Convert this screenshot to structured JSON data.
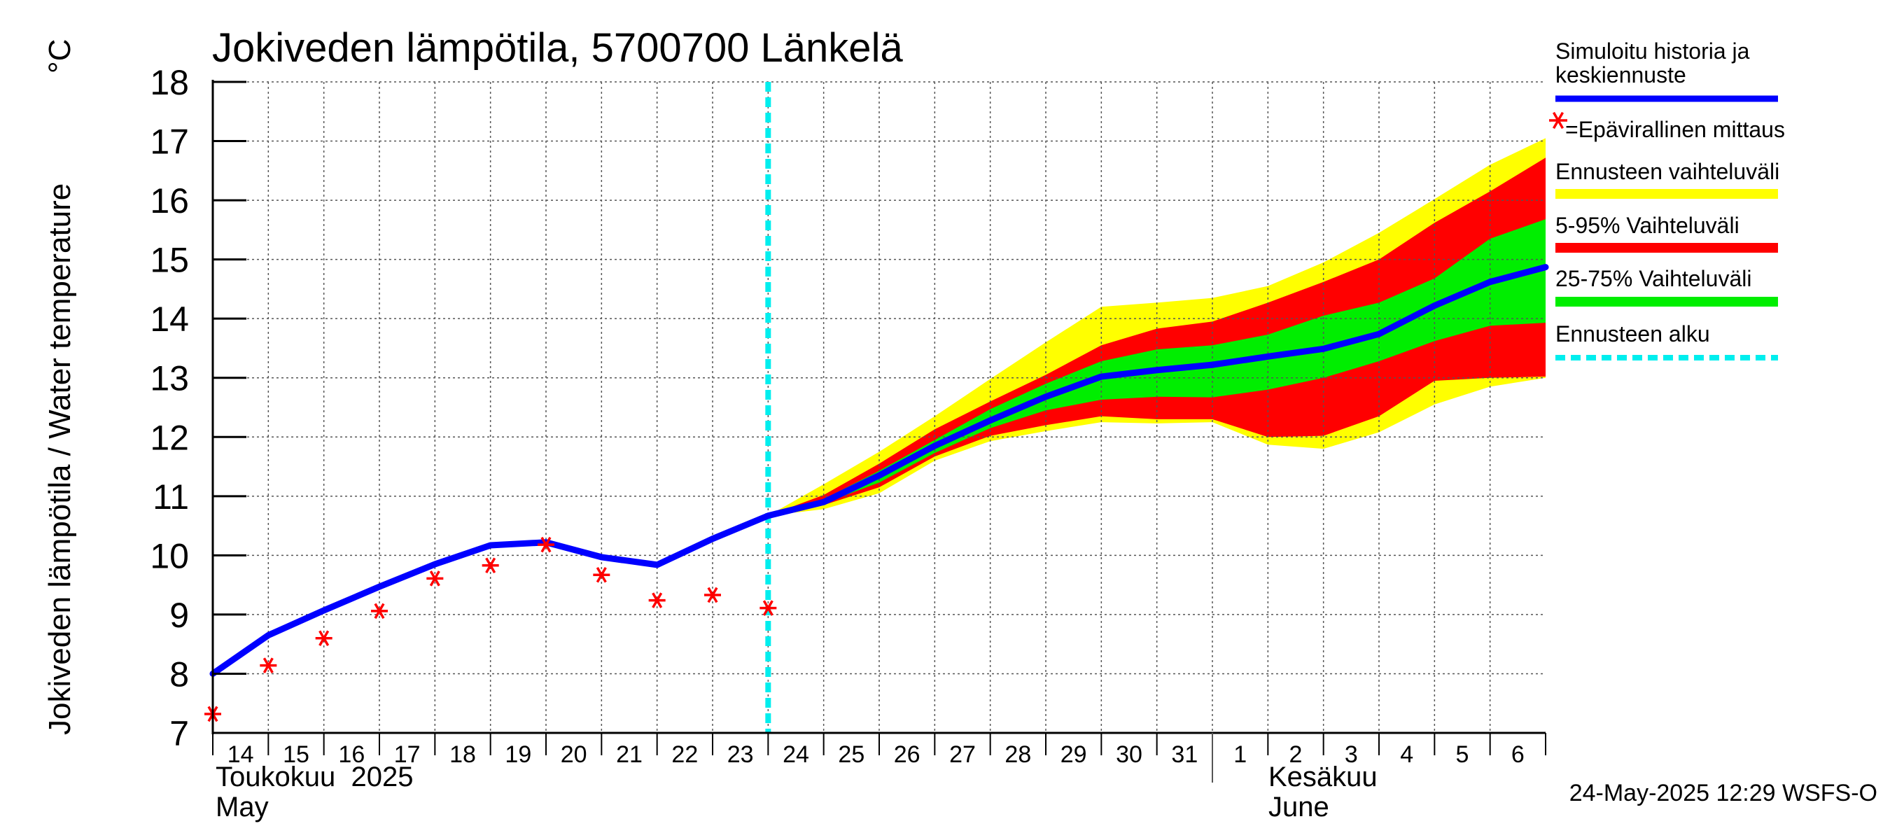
{
  "chart_data": {
    "type": "line",
    "title": "Jokiveden lämpötila, 5700700 Länkelä",
    "ylabel": "Jokiveden lämpötila / Water temperature",
    "yunit": "°C",
    "ylim": [
      7,
      18
    ],
    "yticks": [
      7,
      8,
      9,
      10,
      11,
      12,
      13,
      14,
      15,
      16,
      17,
      18
    ],
    "xlim": [
      "2025-05-14",
      "2025-06-07"
    ],
    "xtick_labels": [
      "14",
      "15",
      "16",
      "17",
      "18",
      "19",
      "20",
      "21",
      "22",
      "23",
      "24",
      "25",
      "26",
      "27",
      "28",
      "29",
      "30",
      "31",
      "1",
      "2",
      "3",
      "4",
      "5",
      "6"
    ],
    "month_labels": [
      {
        "fi": "Toukokuu  2025",
        "en": "May"
      },
      {
        "fi": "Kesäkuu",
        "en": "June"
      }
    ],
    "grid": true,
    "legend_position": "right",
    "forecast_start": "2025-05-24",
    "simulated": {
      "name": "Simuloitu historia ja keskiennuste",
      "color": "#0000ff",
      "x": [
        "2025-05-14",
        "2025-05-15",
        "2025-05-16",
        "2025-05-17",
        "2025-05-18",
        "2025-05-19",
        "2025-05-20",
        "2025-05-21",
        "2025-05-22",
        "2025-05-23",
        "2025-05-24",
        "2025-05-25",
        "2025-05-26",
        "2025-05-27",
        "2025-05-28",
        "2025-05-29",
        "2025-05-30",
        "2025-05-31",
        "2025-06-01",
        "2025-06-02",
        "2025-06-03",
        "2025-06-04",
        "2025-06-05",
        "2025-06-06",
        "2025-06-07"
      ],
      "y": [
        8.0,
        8.65,
        9.07,
        9.47,
        9.85,
        10.17,
        10.22,
        9.97,
        9.84,
        10.28,
        10.67,
        10.9,
        11.35,
        11.85,
        12.28,
        12.68,
        13.02,
        13.13,
        13.22,
        13.36,
        13.49,
        13.74,
        14.22,
        14.62,
        14.87
      ]
    },
    "observations": {
      "name": "=Epävirallinen mittaus",
      "marker": "*",
      "color": "#ff0000",
      "x": [
        "2025-05-14",
        "2025-05-15",
        "2025-05-16",
        "2025-05-17",
        "2025-05-18",
        "2025-05-19",
        "2025-05-20",
        "2025-05-21",
        "2025-05-22",
        "2025-05-23",
        "2025-05-24"
      ],
      "y": [
        7.32,
        8.14,
        8.6,
        9.06,
        9.61,
        9.83,
        10.18,
        9.67,
        9.24,
        9.33,
        9.11
      ]
    },
    "bands_x": [
      "2025-05-24",
      "2025-05-25",
      "2025-05-26",
      "2025-05-27",
      "2025-05-28",
      "2025-05-29",
      "2025-05-30",
      "2025-05-31",
      "2025-06-01",
      "2025-06-02",
      "2025-06-03",
      "2025-06-04",
      "2025-06-05",
      "2025-06-06",
      "2025-06-07"
    ],
    "bands": [
      {
        "name": "Ennusteen vaihteluväli",
        "color": "#ffff00",
        "upper": [
          10.67,
          11.2,
          11.75,
          12.35,
          12.98,
          13.6,
          14.2,
          14.27,
          14.35,
          14.55,
          14.95,
          15.45,
          16.02,
          16.6,
          17.05
        ],
        "lower": [
          10.67,
          10.78,
          11.05,
          11.6,
          11.93,
          12.1,
          12.25,
          12.23,
          12.25,
          11.87,
          11.8,
          12.08,
          12.55,
          12.85,
          13.0
        ]
      },
      {
        "name": "5-95% Vaihteluväli",
        "color": "#ff0000",
        "upper": [
          10.67,
          11.02,
          11.55,
          12.13,
          12.6,
          13.05,
          13.55,
          13.83,
          13.95,
          14.27,
          14.62,
          15.0,
          15.62,
          16.15,
          16.72
        ],
        "lower": [
          10.67,
          10.85,
          11.15,
          11.67,
          12.02,
          12.2,
          12.35,
          12.3,
          12.3,
          12.0,
          12.02,
          12.35,
          12.95,
          13.0,
          13.02
        ]
      },
      {
        "name": "25-75% Vaihteluväli",
        "color": "#00ee00",
        "upper": [
          10.67,
          10.95,
          11.43,
          11.95,
          12.47,
          12.9,
          13.28,
          13.48,
          13.55,
          13.73,
          14.05,
          14.27,
          14.68,
          15.35,
          15.68
        ],
        "lower": [
          10.67,
          10.88,
          11.23,
          11.73,
          12.15,
          12.45,
          12.63,
          12.68,
          12.67,
          12.8,
          13.0,
          13.28,
          13.62,
          13.88,
          13.93
        ]
      }
    ],
    "forecast_start_line": {
      "name": "Ennusteen alku",
      "color": "#00eeee"
    },
    "legend_header": [
      "Simuloitu historia ja",
      "keskiennuste"
    ]
  },
  "footer": {
    "timestamp": "24-May-2025 12:29 WSFS-O"
  }
}
